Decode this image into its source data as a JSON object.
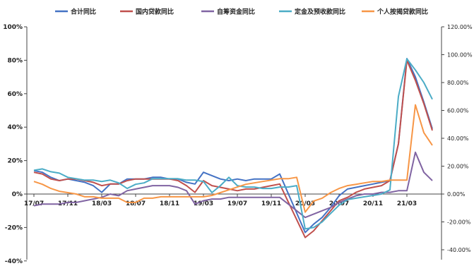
{
  "chart_data": {
    "type": "line",
    "x": [
      "17/07",
      "17/08",
      "17/09",
      "17/10",
      "17/11",
      "17/12",
      "18/01",
      "18/02",
      "18/03",
      "18/04",
      "18/05",
      "18/06",
      "18/07",
      "18/08",
      "18/09",
      "18/10",
      "18/11",
      "18/12",
      "19/01",
      "19/02",
      "19/03",
      "19/04",
      "19/05",
      "19/06",
      "19/07",
      "19/08",
      "19/09",
      "19/10",
      "19/11",
      "19/12",
      "20/01",
      "20/02",
      "20/03",
      "20/04",
      "20/05",
      "20/06",
      "20/07",
      "20/08",
      "20/09",
      "20/10",
      "20/11",
      "20/12",
      "21/01",
      "21/02",
      "21/03",
      "21/04",
      "21/05",
      "21/06"
    ],
    "x_tick_labels": [
      "17/07",
      "17/11",
      "18/03",
      "18/07",
      "18/11",
      "19/03",
      "19/07",
      "19/11",
      "20/03",
      "20/07",
      "20/11",
      "21/03"
    ],
    "y_left": {
      "ticks": [
        "100%",
        "80%",
        "60%",
        "40%",
        "20%",
        "0%",
        "-20%",
        "-40%"
      ],
      "min": -40,
      "max": 100
    },
    "y_right": {
      "ticks": [
        "120.00%",
        "100.00%",
        "80.00%",
        "60.00%",
        "40.00%",
        "20.00%",
        "0.00%",
        "-20.00%",
        "-40.00%"
      ],
      "min": -40,
      "max": 120
    },
    "grid": false,
    "legend_position": "top",
    "series": [
      {
        "name": "合计同比",
        "color": "#4472C4",
        "axis": "left",
        "values": [
          14,
          13,
          10,
          8,
          9,
          8,
          7,
          5,
          1,
          6,
          6,
          9,
          9,
          9,
          10,
          10,
          9,
          9,
          7,
          6,
          13,
          11,
          9,
          8,
          9,
          8,
          9,
          9,
          9,
          12,
          null,
          null,
          -23,
          -18,
          -14,
          -8,
          -1,
          3,
          4,
          5,
          6,
          7,
          8,
          30,
          81,
          70,
          55,
          39
        ]
      },
      {
        "name": "国内贷款同比",
        "color": "#C0504D",
        "axis": "left",
        "values": [
          13,
          12,
          9,
          8,
          9,
          9,
          8,
          7,
          5,
          6,
          6,
          8,
          9,
          9,
          9,
          9,
          9,
          8,
          5,
          1,
          8,
          5,
          4,
          3,
          2,
          3,
          3,
          4,
          5,
          6,
          null,
          null,
          -26,
          -22,
          -16,
          -10,
          -4,
          -2,
          1,
          3,
          4,
          5,
          8,
          30,
          80,
          68,
          54,
          38
        ]
      },
      {
        "name": "自筹资金同比",
        "color": "#8064A2",
        "axis": "left",
        "values": [
          -7,
          -6,
          -6,
          -6,
          -5,
          -5,
          -4,
          -3,
          -2,
          0,
          -1,
          2,
          3,
          4,
          5,
          5,
          5,
          4,
          2,
          -6,
          -4,
          -3,
          -3,
          -2,
          -2,
          -2,
          -2,
          -2,
          -2,
          -2,
          null,
          null,
          -14,
          -12,
          -10,
          -8,
          -5,
          -3,
          -1,
          0,
          0,
          1,
          1,
          2,
          2,
          25,
          13,
          8
        ]
      },
      {
        "name": "定金及预收款同比",
        "color": "#4BACC6",
        "axis": "right",
        "values": [
          17,
          18,
          16,
          15,
          12,
          11,
          10,
          10,
          9,
          10,
          8,
          4,
          7,
          8,
          11,
          11,
          11,
          11,
          10,
          10,
          9,
          1,
          6,
          12,
          6,
          5,
          5,
          4,
          4,
          5,
          5,
          6,
          -25,
          -24,
          -20,
          -14,
          -8,
          -4,
          -3,
          -2,
          -1,
          0,
          3,
          70,
          97,
          89,
          80,
          68
        ]
      },
      {
        "name": "个人按揭贷款同比",
        "color": "#F79646",
        "axis": "right",
        "values": [
          9,
          7,
          4,
          2,
          1,
          0,
          -2,
          -2,
          -3,
          -3,
          -3,
          -6,
          -6,
          -3,
          -3,
          -2,
          -2,
          -2,
          -2,
          -2,
          -2,
          -1,
          1,
          3,
          5,
          7,
          8,
          9,
          10,
          11,
          11,
          12,
          -13,
          -5,
          -3,
          1,
          4,
          6,
          7,
          8,
          9,
          9,
          10,
          10,
          10,
          64,
          44,
          35
        ]
      }
    ]
  }
}
